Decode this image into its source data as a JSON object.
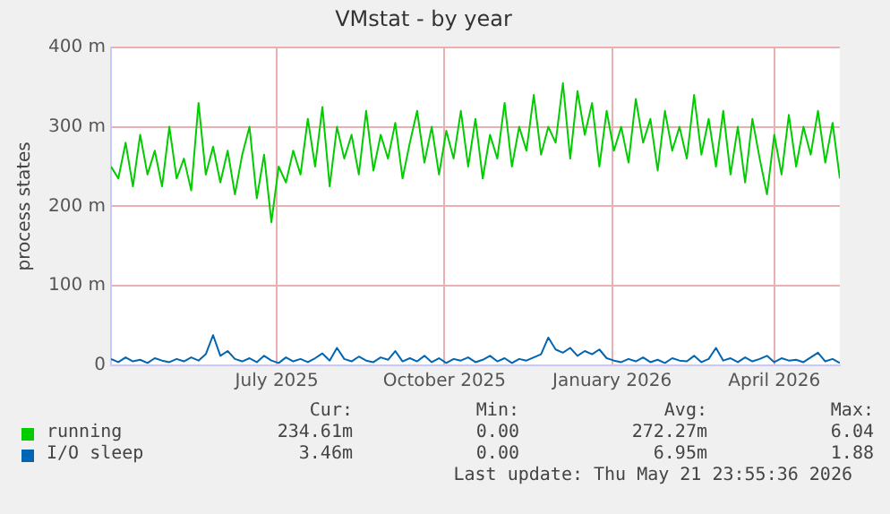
{
  "chart_data": {
    "type": "line",
    "title": "VMstat - by year",
    "ylabel": "process states",
    "x": [
      "2025-04-16",
      "2025-04-20",
      "2025-04-24",
      "2025-04-28",
      "2025-05-02",
      "2025-05-06",
      "2025-05-10",
      "2025-05-14",
      "2025-05-18",
      "2025-05-22",
      "2025-05-26",
      "2025-05-30",
      "2025-06-03",
      "2025-06-07",
      "2025-06-11",
      "2025-06-15",
      "2025-06-19",
      "2025-06-23",
      "2025-06-27",
      "2025-07-01",
      "2025-07-05",
      "2025-07-09",
      "2025-07-13",
      "2025-07-17",
      "2025-07-21",
      "2025-07-25",
      "2025-07-29",
      "2025-08-02",
      "2025-08-06",
      "2025-08-10",
      "2025-08-14",
      "2025-08-18",
      "2025-08-22",
      "2025-08-26",
      "2025-08-30",
      "2025-09-03",
      "2025-09-07",
      "2025-09-11",
      "2025-09-15",
      "2025-09-19",
      "2025-09-23",
      "2025-09-27",
      "2025-10-01",
      "2025-10-05",
      "2025-10-09",
      "2025-10-13",
      "2025-10-17",
      "2025-10-21",
      "2025-10-25",
      "2025-10-29",
      "2025-11-02",
      "2025-11-06",
      "2025-11-10",
      "2025-11-14",
      "2025-11-18",
      "2025-11-22",
      "2025-11-26",
      "2025-11-30",
      "2025-12-04",
      "2025-12-08",
      "2025-12-12",
      "2025-12-16",
      "2025-12-20",
      "2025-12-24",
      "2025-12-28",
      "2026-01-01",
      "2026-01-05",
      "2026-01-09",
      "2026-01-13",
      "2026-01-17",
      "2026-01-21",
      "2026-01-25",
      "2026-01-29",
      "2026-02-02",
      "2026-02-06",
      "2026-02-10",
      "2026-02-14",
      "2026-02-18",
      "2026-02-22",
      "2026-02-26",
      "2026-03-02",
      "2026-03-06",
      "2026-03-10",
      "2026-03-14",
      "2026-03-18",
      "2026-03-22",
      "2026-03-26",
      "2026-03-30",
      "2026-04-03",
      "2026-04-07",
      "2026-04-11",
      "2026-04-15",
      "2026-04-19",
      "2026-04-23",
      "2026-04-27",
      "2026-05-01",
      "2026-05-05",
      "2026-05-09",
      "2026-05-13",
      "2026-05-17",
      "2026-05-21"
    ],
    "series": [
      {
        "name": "running",
        "color": "#00cc00",
        "values": [
          250,
          235,
          280,
          225,
          290,
          240,
          270,
          225,
          300,
          235,
          260,
          220,
          330,
          240,
          275,
          230,
          270,
          215,
          265,
          300,
          210,
          265,
          180,
          250,
          230,
          270,
          240,
          310,
          250,
          325,
          225,
          300,
          260,
          290,
          240,
          320,
          245,
          290,
          260,
          305,
          235,
          280,
          320,
          255,
          300,
          240,
          295,
          260,
          320,
          250,
          310,
          235,
          290,
          260,
          330,
          250,
          300,
          270,
          340,
          265,
          300,
          280,
          355,
          260,
          345,
          290,
          330,
          250,
          320,
          270,
          300,
          255,
          335,
          280,
          310,
          245,
          320,
          270,
          300,
          260,
          340,
          265,
          310,
          250,
          320,
          240,
          300,
          230,
          310,
          260,
          215,
          290,
          240,
          315,
          250,
          300,
          265,
          320,
          255,
          305,
          235
        ]
      },
      {
        "name": "I/O sleep",
        "color": "#0066b3",
        "values": [
          8,
          4,
          10,
          5,
          7,
          3,
          9,
          6,
          4,
          8,
          5,
          10,
          6,
          14,
          38,
          12,
          18,
          8,
          5,
          9,
          4,
          12,
          6,
          3,
          10,
          5,
          8,
          4,
          9,
          15,
          6,
          22,
          8,
          5,
          11,
          6,
          4,
          10,
          7,
          18,
          5,
          9,
          5,
          12,
          4,
          9,
          3,
          8,
          6,
          10,
          4,
          7,
          12,
          5,
          9,
          3,
          8,
          6,
          10,
          14,
          35,
          20,
          16,
          22,
          12,
          18,
          14,
          20,
          9,
          6,
          4,
          8,
          5,
          10,
          4,
          7,
          3,
          9,
          6,
          5,
          12,
          4,
          8,
          22,
          6,
          9,
          4,
          10,
          5,
          8,
          12,
          4,
          9,
          6,
          7,
          4,
          10,
          16,
          5,
          8,
          3
        ]
      }
    ],
    "xlim": [
      "2025-04-16",
      "2026-05-21"
    ],
    "xticks": [
      {
        "value": "2025-07-16",
        "label": "July 2025"
      },
      {
        "value": "2025-10-16",
        "label": "October 2025"
      },
      {
        "value": "2026-01-16",
        "label": "January 2026"
      },
      {
        "value": "2026-04-15",
        "label": "April 2026"
      }
    ],
    "ylim": [
      0,
      400
    ],
    "yticks": [
      0,
      {
        "value": 100,
        "label": "100 m"
      },
      {
        "value": 200,
        "label": "200 m"
      },
      {
        "value": 300,
        "label": "300 m"
      },
      {
        "value": 400,
        "label": "400 m"
      }
    ],
    "grid": true,
    "legend": "bottom",
    "marker": "none",
    "line_style": "solid",
    "annotations": [
      "Cur:",
      "Min:",
      "Avg:",
      "Max:",
      "234.61m",
      "0.00",
      "272.27m",
      "6.04",
      "3.46m",
      "0.00",
      "6.95m",
      "1.88",
      "Last update: Thu May 21 23:55:36 2026"
    ]
  }
}
